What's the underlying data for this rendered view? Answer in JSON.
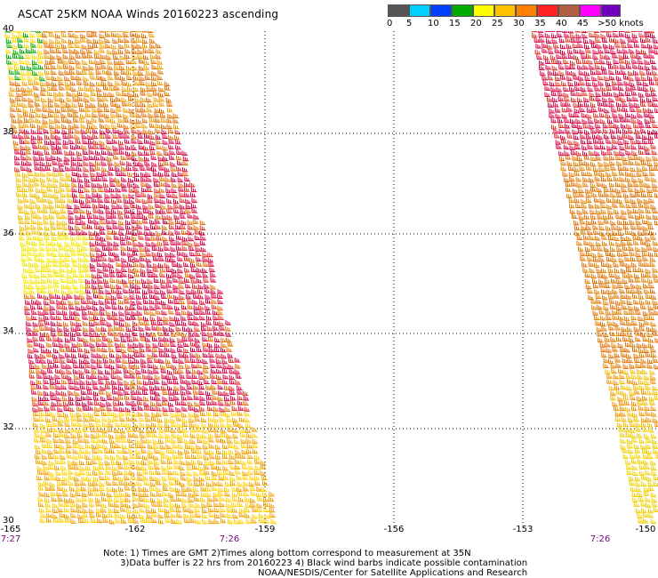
{
  "header": {
    "title": "ASCAT 25KM NOAA Winds 20160223 ascending"
  },
  "legend": {
    "colors": [
      "#555555",
      "#00cfff",
      "#0040ff",
      "#00aa00",
      "#ffff00",
      "#ffc000",
      "#ff7f00",
      "#ff2020",
      "#b06040",
      "#ff00ff",
      "#7000c0"
    ],
    "labels": [
      "0",
      "5",
      "10",
      "15",
      "20",
      "25",
      "30",
      "35",
      "40",
      "45",
      ">50 knots"
    ]
  },
  "axes": {
    "lat_labels": [
      "40",
      "38",
      "36",
      "34",
      "32",
      "30"
    ],
    "lon_labels": [
      "-165",
      "-162",
      "-159",
      "-156",
      "-153",
      "-150"
    ],
    "time_labels": [
      "7:27",
      "7:26",
      "7:26"
    ]
  },
  "notes": {
    "line1": "Note: 1) Times are GMT 2)Times along bottom correspond to measurement at 35N",
    "line2": "3)Data buffer is 22 hrs from 20160223 4) Black wind barbs indicate possible contamination",
    "credit": "NOAA/NESDIS/Center for Satellite Applications and Research"
  }
}
